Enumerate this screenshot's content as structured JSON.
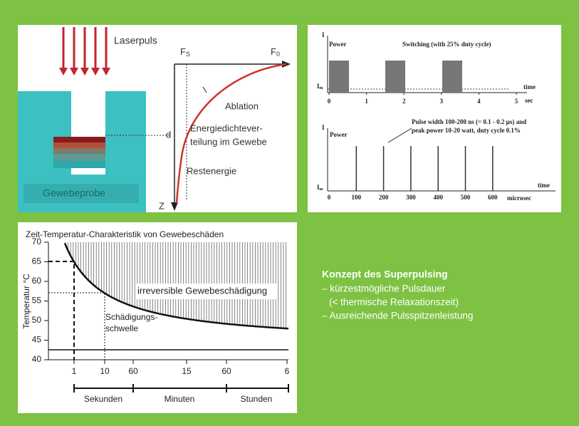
{
  "laser_panel": {
    "laser_label": "Laserpuls",
    "fs": {
      "main": "F",
      "sub": "S"
    },
    "f0": {
      "main": "F",
      "sub": "0"
    },
    "ablation": "Ablation",
    "energy": [
      "Energiedichtever-",
      "teilung im Gewebe"
    ],
    "rest": "Restenergie",
    "depth": "d",
    "z_axis": "Z",
    "sample": "Gewebeprobe"
  },
  "power_panel": {
    "top": {
      "y_axis": "I",
      "label": "Power",
      "title": "Switching (with 25% duty cycle)",
      "im": {
        "main": "I",
        "sub": "m"
      },
      "time": "time",
      "unit": "sec",
      "ticks": [
        0,
        1,
        2,
        3,
        4,
        5
      ]
    },
    "bottom": {
      "y_axis": "I",
      "label": "Power",
      "note": [
        "Pulse width 100-200 ns (= 0.1 - 0.2 µs) and",
        "peak power 10-20 watt, duty cycle 0.1%"
      ],
      "im": {
        "main": "I",
        "sub": "m"
      },
      "time": "time",
      "unit": "microsec",
      "ticks": [
        0,
        100,
        200,
        300,
        400,
        500,
        600
      ]
    }
  },
  "temperature_chart": {
    "title": "Zeit-Temperatur-Charakteristik von Gewebeschäden",
    "y_label": "Temperatur °C",
    "ylim": [
      40,
      70
    ],
    "yticks": [
      40,
      45,
      50,
      55,
      60,
      65,
      70
    ],
    "x_ticks": [
      "1",
      "10",
      "60",
      "15",
      "60",
      "6"
    ],
    "groups": [
      "Sekunden",
      "Minuten",
      "Stunden"
    ],
    "region_label": "irreversible Gewebeschädigung",
    "threshold_label": [
      "Schädigungs-",
      "schwelle"
    ]
  },
  "concept": {
    "title": "Konzept des Superpulsing",
    "items": [
      "– kürzestmögliche Pulsdauer",
      "(< thermische Relaxationszeit)",
      "– Ausreichende Pulsspitzenleistung"
    ]
  }
}
